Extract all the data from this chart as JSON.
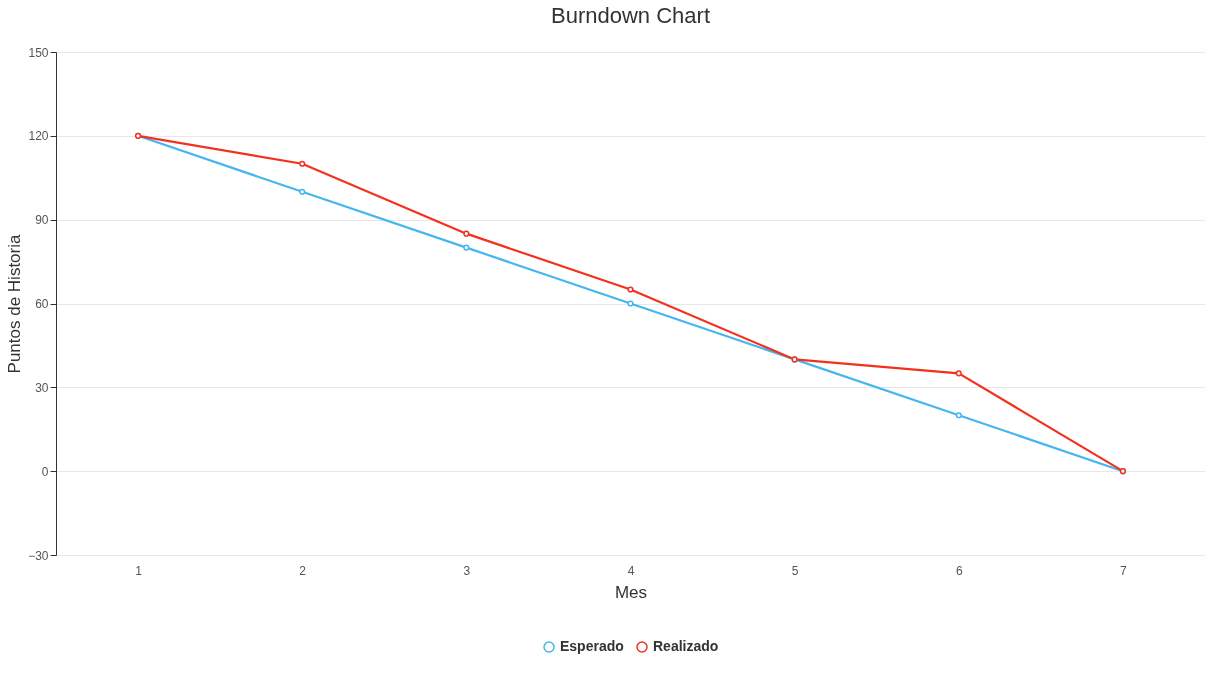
{
  "chart_data": {
    "type": "line",
    "title": "Burndown Chart",
    "xlabel": "Mes",
    "ylabel": "Puntos de Historia",
    "categories": [
      "1",
      "2",
      "3",
      "4",
      "5",
      "6",
      "7"
    ],
    "series": [
      {
        "name": "Esperado",
        "color": "#45b6f0",
        "values": [
          120,
          100,
          80,
          60,
          40,
          20,
          0
        ]
      },
      {
        "name": "Realizado",
        "color": "#f2321e",
        "values": [
          120,
          110,
          85,
          65,
          40,
          35,
          0
        ]
      }
    ],
    "ylim": [
      -30,
      150
    ],
    "yticks": [
      -30,
      0,
      30,
      60,
      90,
      120,
      150
    ],
    "grid": "y",
    "legend": "bottom",
    "marker": "circle",
    "line_style": "solid"
  }
}
